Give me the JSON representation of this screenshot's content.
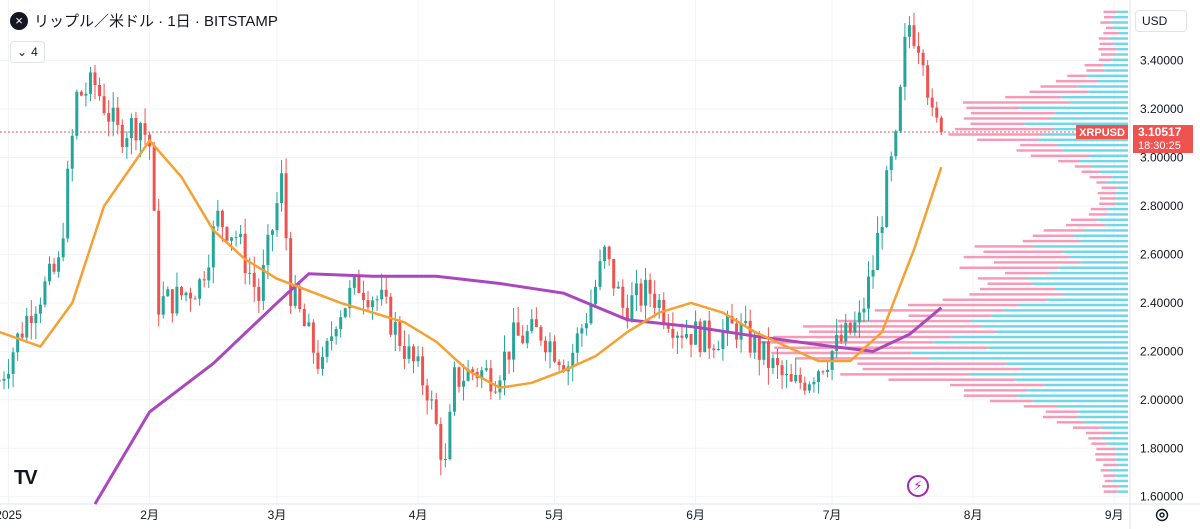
{
  "header": {
    "close_glyph": "×",
    "title": "リップル／米ドル · 1日 · BITSTAMP",
    "indicator_count": "4",
    "currency": "USD"
  },
  "price_label": {
    "symbol": "XRPUSD",
    "price": "3.10517",
    "countdown": "18:30:25"
  },
  "logo": "TV",
  "icons": {
    "close": "close-icon",
    "collapse": "chevron-down-icon",
    "settings": "settings-icon",
    "flash": "lightning-icon"
  },
  "colors": {
    "up": "#26a69a",
    "down": "#ef5350",
    "ma_short": "#f7a032",
    "ma_long": "#ab47bc",
    "vp_up": "#5fd3e6",
    "vp_down": "#f48fb1",
    "current_line": "#ef5350"
  },
  "chart_data": {
    "type": "candlestick",
    "title": "リップル／米ドル · 1日 · BITSTAMP",
    "y_axis_ticks": [
      "1.60000",
      "1.80000",
      "2.00000",
      "2.20000",
      "2.40000",
      "2.60000",
      "2.80000",
      "3.00000",
      "3.20000",
      "3.40000"
    ],
    "x_axis_ticks": [
      "2025",
      "2月",
      "3月",
      "4月",
      "5月",
      "6月",
      "7月",
      "8月",
      "9月"
    ],
    "ylim": [
      1.57,
      3.65
    ],
    "current_price": 3.10517,
    "series": [
      {
        "name": "price",
        "kind": "candles",
        "anchors": [
          {
            "date": "2024-12-30",
            "close": 2.08
          },
          {
            "date": "2025-01-06",
            "close": 2.38
          },
          {
            "date": "2025-01-12",
            "close": 2.55
          },
          {
            "date": "2025-01-16",
            "close": 3.25
          },
          {
            "date": "2025-01-20",
            "close": 3.3
          },
          {
            "date": "2025-01-25",
            "close": 3.1
          },
          {
            "date": "2025-01-30",
            "close": 3.15
          },
          {
            "date": "2025-02-01",
            "close": 3.05
          },
          {
            "date": "2025-02-03",
            "close": 2.4
          },
          {
            "date": "2025-02-07",
            "close": 2.42
          },
          {
            "date": "2025-02-12",
            "close": 2.48
          },
          {
            "date": "2025-02-16",
            "close": 2.75
          },
          {
            "date": "2025-02-20",
            "close": 2.68
          },
          {
            "date": "2025-02-25",
            "close": 2.42
          },
          {
            "date": "2025-03-02",
            "close": 2.9
          },
          {
            "date": "2025-03-04",
            "close": 2.45
          },
          {
            "date": "2025-03-07",
            "close": 2.3
          },
          {
            "date": "2025-03-11",
            "close": 2.12
          },
          {
            "date": "2025-03-14",
            "close": 2.35
          },
          {
            "date": "2025-03-19",
            "close": 2.48
          },
          {
            "date": "2025-03-24",
            "close": 2.4
          },
          {
            "date": "2025-03-30",
            "close": 2.18
          },
          {
            "date": "2025-04-03",
            "close": 2.05
          },
          {
            "date": "2025-04-07",
            "close": 1.72
          },
          {
            "date": "2025-04-09",
            "close": 2.08
          },
          {
            "date": "2025-04-13",
            "close": 2.12
          },
          {
            "date": "2025-04-18",
            "close": 2.1
          },
          {
            "date": "2025-04-22",
            "close": 2.25
          },
          {
            "date": "2025-04-28",
            "close": 2.28
          },
          {
            "date": "2025-05-04",
            "close": 2.15
          },
          {
            "date": "2025-05-09",
            "close": 2.4
          },
          {
            "date": "2025-05-12",
            "close": 2.6
          },
          {
            "date": "2025-05-16",
            "close": 2.38
          },
          {
            "date": "2025-05-22",
            "close": 2.45
          },
          {
            "date": "2025-05-28",
            "close": 2.3
          },
          {
            "date": "2025-06-04",
            "close": 2.25
          },
          {
            "date": "2025-06-10",
            "close": 2.3
          },
          {
            "date": "2025-06-15",
            "close": 2.2
          },
          {
            "date": "2025-06-22",
            "close": 2.05
          },
          {
            "date": "2025-06-26",
            "close": 2.1
          },
          {
            "date": "2025-07-01",
            "close": 2.2
          },
          {
            "date": "2025-07-07",
            "close": 2.32
          },
          {
            "date": "2025-07-10",
            "close": 2.55
          },
          {
            "date": "2025-07-13",
            "close": 2.88
          },
          {
            "date": "2025-07-15",
            "close": 3.05
          },
          {
            "date": "2025-07-17",
            "close": 3.45
          },
          {
            "date": "2025-07-18",
            "close": 3.55
          },
          {
            "date": "2025-07-21",
            "close": 3.45
          },
          {
            "date": "2025-07-23",
            "close": 3.15
          },
          {
            "date": "2025-07-25",
            "close": 3.10517
          }
        ]
      },
      {
        "name": "ma_short",
        "kind": "line",
        "points": [
          {
            "date": "2024-12-30",
            "value": 2.28
          },
          {
            "date": "2025-01-08",
            "value": 2.22
          },
          {
            "date": "2025-01-15",
            "value": 2.4
          },
          {
            "date": "2025-01-22",
            "value": 2.8
          },
          {
            "date": "2025-02-01",
            "value": 3.07
          },
          {
            "date": "2025-02-08",
            "value": 2.92
          },
          {
            "date": "2025-02-15",
            "value": 2.7
          },
          {
            "date": "2025-02-22",
            "value": 2.58
          },
          {
            "date": "2025-03-01",
            "value": 2.5
          },
          {
            "date": "2025-03-08",
            "value": 2.45
          },
          {
            "date": "2025-03-15",
            "value": 2.4
          },
          {
            "date": "2025-03-22",
            "value": 2.36
          },
          {
            "date": "2025-03-29",
            "value": 2.32
          },
          {
            "date": "2025-04-05",
            "value": 2.24
          },
          {
            "date": "2025-04-12",
            "value": 2.12
          },
          {
            "date": "2025-04-19",
            "value": 2.05
          },
          {
            "date": "2025-04-26",
            "value": 2.07
          },
          {
            "date": "2025-05-03",
            "value": 2.12
          },
          {
            "date": "2025-05-10",
            "value": 2.18
          },
          {
            "date": "2025-05-17",
            "value": 2.28
          },
          {
            "date": "2025-05-24",
            "value": 2.36
          },
          {
            "date": "2025-05-31",
            "value": 2.4
          },
          {
            "date": "2025-06-07",
            "value": 2.36
          },
          {
            "date": "2025-06-14",
            "value": 2.28
          },
          {
            "date": "2025-06-21",
            "value": 2.22
          },
          {
            "date": "2025-06-28",
            "value": 2.16
          },
          {
            "date": "2025-07-05",
            "value": 2.16
          },
          {
            "date": "2025-07-12",
            "value": 2.28
          },
          {
            "date": "2025-07-19",
            "value": 2.62
          },
          {
            "date": "2025-07-25",
            "value": 2.96
          }
        ]
      },
      {
        "name": "ma_long",
        "kind": "line",
        "points": [
          {
            "date": "2025-01-20",
            "value": 1.57
          },
          {
            "date": "2025-02-01",
            "value": 1.95
          },
          {
            "date": "2025-02-15",
            "value": 2.15
          },
          {
            "date": "2025-03-01",
            "value": 2.4
          },
          {
            "date": "2025-03-08",
            "value": 2.52
          },
          {
            "date": "2025-03-22",
            "value": 2.51
          },
          {
            "date": "2025-04-05",
            "value": 2.51
          },
          {
            "date": "2025-04-19",
            "value": 2.48
          },
          {
            "date": "2025-05-03",
            "value": 2.44
          },
          {
            "date": "2025-05-17",
            "value": 2.33
          },
          {
            "date": "2025-06-01",
            "value": 2.3
          },
          {
            "date": "2025-06-15",
            "value": 2.26
          },
          {
            "date": "2025-07-01",
            "value": 2.22
          },
          {
            "date": "2025-07-10",
            "value": 2.2
          },
          {
            "date": "2025-07-18",
            "value": 2.27
          },
          {
            "date": "2025-07-25",
            "value": 2.38
          }
        ]
      }
    ]
  }
}
